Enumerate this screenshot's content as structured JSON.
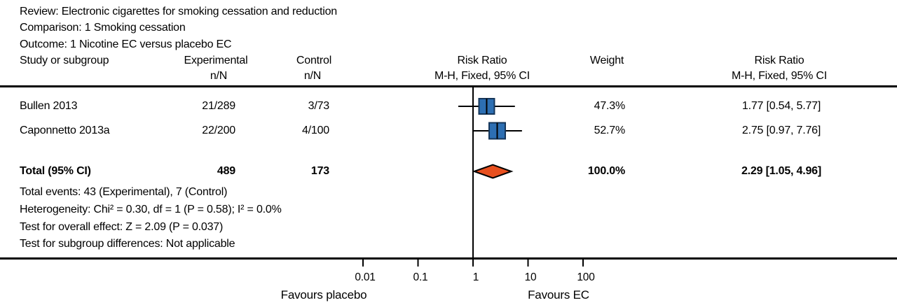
{
  "figure": {
    "review": "Review: Electronic cigarettes for smoking cessation and reduction",
    "comparison": "Comparison: 1 Smoking cessation",
    "outcome": "Outcome: 1 Nicotine EC versus placebo EC"
  },
  "columns": {
    "study": "Study or subgroup",
    "experimental": "Experimental",
    "control": "Control",
    "n_over_N": "n/N",
    "risk_ratio": "Risk Ratio",
    "method": "M-H, Fixed, 95% CI",
    "weight": "Weight"
  },
  "rows": [
    {
      "study": "Bullen 2013",
      "experimental": "21/289",
      "control": "3/73",
      "weight": "47.3%",
      "risk_ratio": "1.77 [0.54, 5.77]"
    },
    {
      "study": "Caponnetto 2013a",
      "experimental": "22/200",
      "control": "4/100",
      "weight": "52.7%",
      "risk_ratio": "2.75 [0.97, 7.76]"
    }
  ],
  "total": {
    "label": "Total (95% CI)",
    "experimental": "489",
    "control": "173",
    "weight": "100.0%",
    "risk_ratio": "2.29 [1.05, 4.96]"
  },
  "footnotes": {
    "total_events": "Total events: 43 (Experimental), 7 (Control)",
    "heterogeneity": "Heterogeneity: Chi² = 0.30, df = 1 (P = 0.58); I² = 0.0%",
    "overall_effect": "Test for overall effect: Z = 2.09 (P = 0.037)",
    "subgroup": "Test for subgroup differences: Not applicable"
  },
  "axis": {
    "tick_labels": [
      "0.01",
      "0.1",
      "1",
      "10",
      "100"
    ],
    "favours_left": "Favours placebo",
    "favours_right": "Favours EC"
  },
  "chart_data": {
    "type": "forest",
    "effect_measure": "Risk Ratio (M-H, Fixed, 95% CI)",
    "x_scale": "log10",
    "axis_ticks": [
      0.01,
      0.1,
      1,
      10,
      100
    ],
    "null_value": 1,
    "studies": [
      {
        "name": "Bullen 2013",
        "events_experimental": 21,
        "total_experimental": 289,
        "events_control": 3,
        "total_control": 73,
        "rr": 1.77,
        "ci_low": 0.54,
        "ci_high": 5.77,
        "weight_pct": 47.3
      },
      {
        "name": "Caponnetto 2013a",
        "events_experimental": 22,
        "total_experimental": 200,
        "events_control": 4,
        "total_control": 100,
        "rr": 2.75,
        "ci_low": 0.97,
        "ci_high": 7.76,
        "weight_pct": 52.7
      }
    ],
    "total": {
      "n_experimental": 489,
      "n_control": 173,
      "total_events_experimental": 43,
      "total_events_control": 7,
      "rr": 2.29,
      "ci_low": 1.05,
      "ci_high": 4.96,
      "weight_pct": 100.0
    },
    "heterogeneity": {
      "chi2": 0.3,
      "df": 1,
      "p": 0.58,
      "i2_pct": 0.0
    },
    "overall_effect": {
      "z": 2.09,
      "p": 0.037
    },
    "favours": {
      "left": "Favours placebo",
      "right": "Favours EC"
    },
    "colors": {
      "square_fill": "#2d6fb3",
      "square_border": "#15365a",
      "diamond_fill": "#e8501f",
      "diamond_border": "#000000",
      "line": "#000000"
    }
  }
}
